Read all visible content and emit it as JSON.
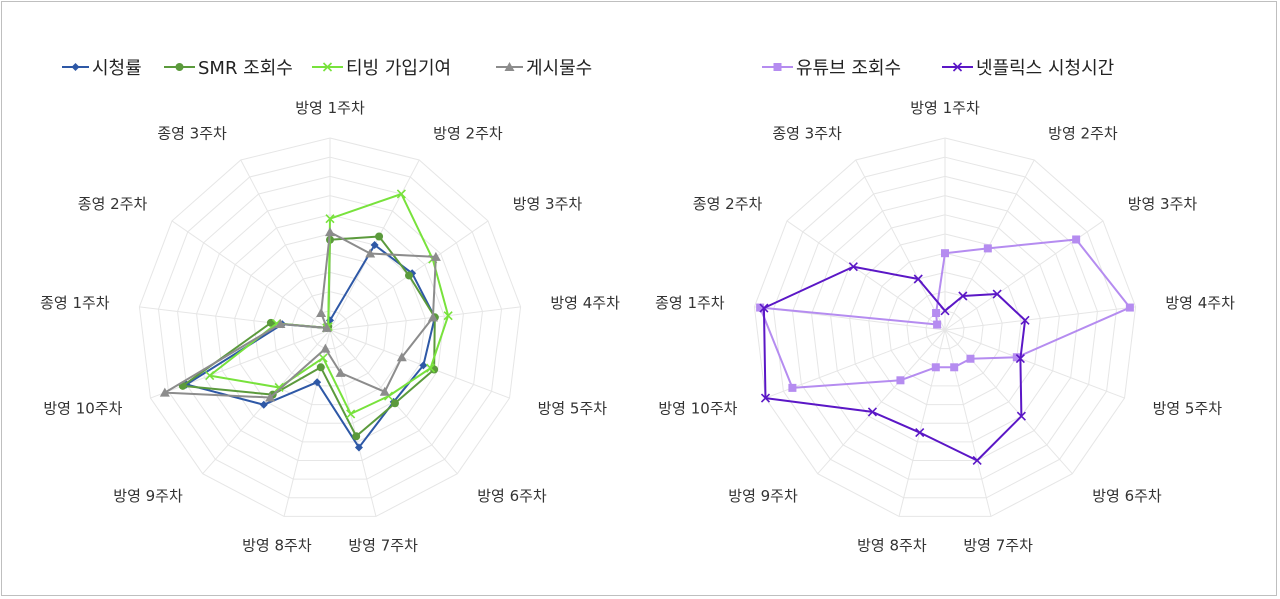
{
  "chart_data": [
    {
      "type": "radar",
      "categories": [
        "방영 1주차",
        "방영 2주차",
        "방영 3주차",
        "방영 4주차",
        "방영 5주차",
        "방영 6주차",
        "방영 7주차",
        "방영 8주차",
        "방영 9주차",
        "방영 10주차",
        "종영 1주차",
        "종영 2주차",
        "종영 3주차"
      ],
      "range": [
        0,
        100
      ],
      "grid": true,
      "legend_position": "top",
      "series": [
        {
          "name": "시청률",
          "color": "#2e58a6",
          "marker": "diamond",
          "values": [
            5,
            50,
            52,
            55,
            52,
            50,
            63,
            28,
            52,
            80,
            25,
            2,
            2
          ]
        },
        {
          "name": "SMR 조회수",
          "color": "#5b9a3c",
          "marker": "circle",
          "values": [
            47,
            55,
            50,
            55,
            58,
            51,
            57,
            20,
            45,
            82,
            31,
            2,
            2
          ]
        },
        {
          "name": "티빙 가입기여",
          "color": "#78e23c",
          "marker": "x",
          "values": [
            58,
            80,
            65,
            62,
            56,
            46,
            45,
            15,
            40,
            67,
            28,
            2,
            2
          ]
        },
        {
          "name": "게시물수",
          "color": "#8c8c8c",
          "marker": "triangle",
          "values": [
            51,
            45,
            67,
            54,
            40,
            43,
            23,
            10,
            47,
            92,
            26,
            2,
            10
          ]
        }
      ]
    },
    {
      "type": "radar",
      "categories": [
        "방영 1주차",
        "방영 2주차",
        "방영 3주차",
        "방영 4주차",
        "방영 5주차",
        "방영 6주차",
        "방영 7주차",
        "방영 8주차",
        "방영 9주차",
        "방영 10주차",
        "종영 1주차",
        "종영 2주차",
        "종영 3주차"
      ],
      "range": [
        0,
        100
      ],
      "grid": true,
      "legend_position": "top",
      "series": [
        {
          "name": "유튜브 조회수",
          "color": "#b58cf0",
          "marker": "square",
          "values": [
            40,
            48,
            83,
            97,
            40,
            20,
            20,
            20,
            35,
            85,
            97,
            5,
            10
          ]
        },
        {
          "name": "넷플릭스 시청시간",
          "color": "#5b17c6",
          "marker": "x",
          "values": [
            10,
            20,
            33,
            42,
            42,
            60,
            70,
            55,
            57,
            100,
            95,
            58,
            30
          ]
        }
      ]
    }
  ]
}
